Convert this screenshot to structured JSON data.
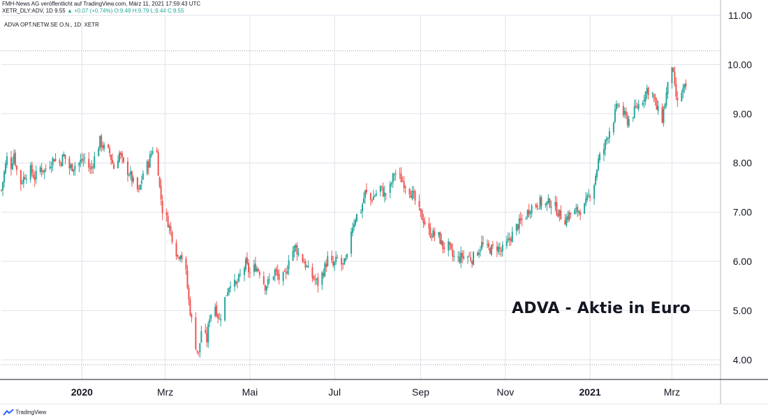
{
  "header": {
    "line1": "FMH-News AG veröffentlicht auf TradingView.com, März 11, 2021 17:59:43 UTC",
    "ticker": "XETR_DLY:ADV, 1D 9.55",
    "change": "▲ +0.07 (+0.74%)",
    "ohlc": "O:9.49 H:9.79 L:9.44 C:9.55"
  },
  "symbol_label": "ADVA OPT.NETW.SE O.N., 1D, XETR",
  "annotation": "ADVA - Aktie in Euro",
  "footer": {
    "logo_text": "TradingView",
    "logo_icon": "tradingview-logo-icon"
  },
  "colors": {
    "up": "#26a69a",
    "down": "#ef5350",
    "grid": "#e0e3eb",
    "axis": "#131722"
  },
  "chart_data": {
    "type": "candlestick",
    "title": "",
    "xlabel": "",
    "ylabel": "",
    "ylim": [
      3.6,
      11.0
    ],
    "y_ticks": [
      "4.00",
      "5.00",
      "6.00",
      "7.00",
      "8.00",
      "9.00",
      "10.00",
      "11.00"
    ],
    "x_ticks": [
      {
        "label": "2020",
        "bold": true
      },
      {
        "label": "Mrz",
        "bold": false
      },
      {
        "label": "Mai",
        "bold": false
      },
      {
        "label": "Jul",
        "bold": false
      },
      {
        "label": "Sep",
        "bold": false
      },
      {
        "label": "Nov",
        "bold": false
      },
      {
        "label": "2021",
        "bold": true
      },
      {
        "label": "Mrz",
        "bold": false
      }
    ],
    "x_tick_dates": [
      "2020-01-01",
      "2020-03-01",
      "2020-05-01",
      "2020-07-01",
      "2020-09-01",
      "2020-11-01",
      "2021-01-01",
      "2021-03-01"
    ],
    "date_range": [
      "2019-11-04",
      "2021-04-05"
    ],
    "horizontal_reference_lines": [
      10.28,
      3.9
    ],
    "last_close": 9.55,
    "close_path": [
      [
        "2019-11-04",
        7.45
      ],
      [
        "2019-11-06",
        7.8
      ],
      [
        "2019-11-08",
        8.1
      ],
      [
        "2019-11-11",
        7.95
      ],
      [
        "2019-11-13",
        8.2
      ],
      [
        "2019-11-15",
        7.85
      ],
      [
        "2019-11-18",
        7.6
      ],
      [
        "2019-11-21",
        7.75
      ],
      [
        "2019-11-25",
        7.85
      ],
      [
        "2019-11-28",
        7.7
      ],
      [
        "2019-12-02",
        7.9
      ],
      [
        "2019-12-05",
        7.85
      ],
      [
        "2019-12-09",
        8.0
      ],
      [
        "2019-12-12",
        8.1
      ],
      [
        "2019-12-16",
        8.0
      ],
      [
        "2019-12-19",
        8.15
      ],
      [
        "2019-12-23",
        7.9
      ],
      [
        "2019-12-30",
        8.0
      ],
      [
        "2020-01-03",
        8.1
      ],
      [
        "2020-01-07",
        7.85
      ],
      [
        "2020-01-10",
        8.1
      ],
      [
        "2020-01-14",
        8.45
      ],
      [
        "2020-01-17",
        8.3
      ],
      [
        "2020-01-21",
        8.2
      ],
      [
        "2020-01-24",
        7.9
      ],
      [
        "2020-01-28",
        8.2
      ],
      [
        "2020-01-31",
        7.95
      ],
      [
        "2020-02-04",
        7.8
      ],
      [
        "2020-02-07",
        7.6
      ],
      [
        "2020-02-11",
        7.4
      ],
      [
        "2020-02-14",
        7.8
      ],
      [
        "2020-02-18",
        8.0
      ],
      [
        "2020-02-21",
        8.3
      ],
      [
        "2020-02-24",
        8.2
      ],
      [
        "2020-02-26",
        7.5
      ],
      [
        "2020-02-28",
        7.05
      ],
      [
        "2020-03-03",
        6.8
      ],
      [
        "2020-03-06",
        6.5
      ],
      [
        "2020-03-10",
        6.1
      ],
      [
        "2020-03-12",
        6.2
      ],
      [
        "2020-03-16",
        5.75
      ],
      [
        "2020-03-18",
        5.2
      ],
      [
        "2020-03-20",
        4.8
      ],
      [
        "2020-03-23",
        4.3
      ],
      [
        "2020-03-25",
        4.1
      ],
      [
        "2020-03-27",
        4.6
      ],
      [
        "2020-03-31",
        4.4
      ],
      [
        "2020-04-02",
        4.9
      ],
      [
        "2020-04-06",
        5.1
      ],
      [
        "2020-04-09",
        4.8
      ],
      [
        "2020-04-14",
        5.35
      ],
      [
        "2020-04-17",
        5.6
      ],
      [
        "2020-04-21",
        5.5
      ],
      [
        "2020-04-24",
        5.7
      ],
      [
        "2020-04-28",
        5.95
      ],
      [
        "2020-05-01",
        5.75
      ],
      [
        "2020-05-05",
        5.9
      ],
      [
        "2020-05-08",
        5.8
      ],
      [
        "2020-05-12",
        5.5
      ],
      [
        "2020-05-15",
        5.6
      ],
      [
        "2020-05-19",
        5.8
      ],
      [
        "2020-05-22",
        5.65
      ],
      [
        "2020-05-27",
        5.7
      ],
      [
        "2020-05-29",
        6.1
      ],
      [
        "2020-06-03",
        6.3
      ],
      [
        "2020-06-05",
        6.15
      ],
      [
        "2020-06-09",
        6.0
      ],
      [
        "2020-06-12",
        5.8
      ],
      [
        "2020-06-16",
        5.65
      ],
      [
        "2020-06-19",
        5.55
      ],
      [
        "2020-06-23",
        5.8
      ],
      [
        "2020-06-26",
        6.05
      ],
      [
        "2020-06-30",
        5.9
      ],
      [
        "2020-07-03",
        6.05
      ],
      [
        "2020-07-07",
        5.9
      ],
      [
        "2020-07-10",
        6.05
      ],
      [
        "2020-07-13",
        6.65
      ],
      [
        "2020-07-16",
        6.9
      ],
      [
        "2020-07-20",
        7.05
      ],
      [
        "2020-07-23",
        7.4
      ],
      [
        "2020-07-27",
        7.25
      ],
      [
        "2020-07-30",
        7.35
      ],
      [
        "2020-08-03",
        7.5
      ],
      [
        "2020-08-06",
        7.35
      ],
      [
        "2020-08-10",
        7.5
      ],
      [
        "2020-08-13",
        7.8
      ],
      [
        "2020-08-17",
        7.7
      ],
      [
        "2020-08-20",
        7.6
      ],
      [
        "2020-08-24",
        7.45
      ],
      [
        "2020-08-27",
        7.3
      ],
      [
        "2020-08-31",
        7.0
      ],
      [
        "2020-09-03",
        6.85
      ],
      [
        "2020-09-07",
        6.6
      ],
      [
        "2020-09-10",
        6.55
      ],
      [
        "2020-09-14",
        6.5
      ],
      [
        "2020-09-17",
        6.3
      ],
      [
        "2020-09-21",
        6.3
      ],
      [
        "2020-09-24",
        6.1
      ],
      [
        "2020-09-28",
        6.05
      ],
      [
        "2020-10-01",
        6.1
      ],
      [
        "2020-10-05",
        6.1
      ],
      [
        "2020-10-08",
        6.05
      ],
      [
        "2020-10-12",
        6.2
      ],
      [
        "2020-10-15",
        6.35
      ],
      [
        "2020-10-19",
        6.25
      ],
      [
        "2020-10-22",
        6.25
      ],
      [
        "2020-10-26",
        6.3
      ],
      [
        "2020-10-29",
        6.2
      ],
      [
        "2020-11-02",
        6.35
      ],
      [
        "2020-11-05",
        6.5
      ],
      [
        "2020-11-09",
        6.7
      ],
      [
        "2020-11-12",
        6.8
      ],
      [
        "2020-11-16",
        6.95
      ],
      [
        "2020-11-19",
        7.1
      ],
      [
        "2020-11-23",
        7.15
      ],
      [
        "2020-11-26",
        7.2
      ],
      [
        "2020-11-30",
        7.15
      ],
      [
        "2020-12-03",
        7.2
      ],
      [
        "2020-12-07",
        7.1
      ],
      [
        "2020-12-10",
        6.95
      ],
      [
        "2020-12-14",
        6.85
      ],
      [
        "2020-12-17",
        6.95
      ],
      [
        "2020-12-21",
        7.0
      ],
      [
        "2020-12-28",
        7.1
      ],
      [
        "2021-01-04",
        7.6
      ],
      [
        "2021-01-07",
        8.05
      ],
      [
        "2021-01-11",
        8.3
      ],
      [
        "2021-01-14",
        8.6
      ],
      [
        "2021-01-18",
        8.9
      ],
      [
        "2021-01-21",
        9.2
      ],
      [
        "2021-01-25",
        9.0
      ],
      [
        "2021-01-28",
        8.85
      ],
      [
        "2021-02-01",
        9.0
      ],
      [
        "2021-02-04",
        9.15
      ],
      [
        "2021-02-08",
        9.3
      ],
      [
        "2021-02-11",
        9.5
      ],
      [
        "2021-02-15",
        9.4
      ],
      [
        "2021-02-18",
        9.1
      ],
      [
        "2021-02-22",
        8.9
      ],
      [
        "2021-02-25",
        9.4
      ],
      [
        "2021-03-01",
        10.0
      ],
      [
        "2021-03-03",
        9.5
      ],
      [
        "2021-03-05",
        9.2
      ],
      [
        "2021-03-08",
        9.45
      ],
      [
        "2021-03-11",
        9.55
      ]
    ]
  }
}
